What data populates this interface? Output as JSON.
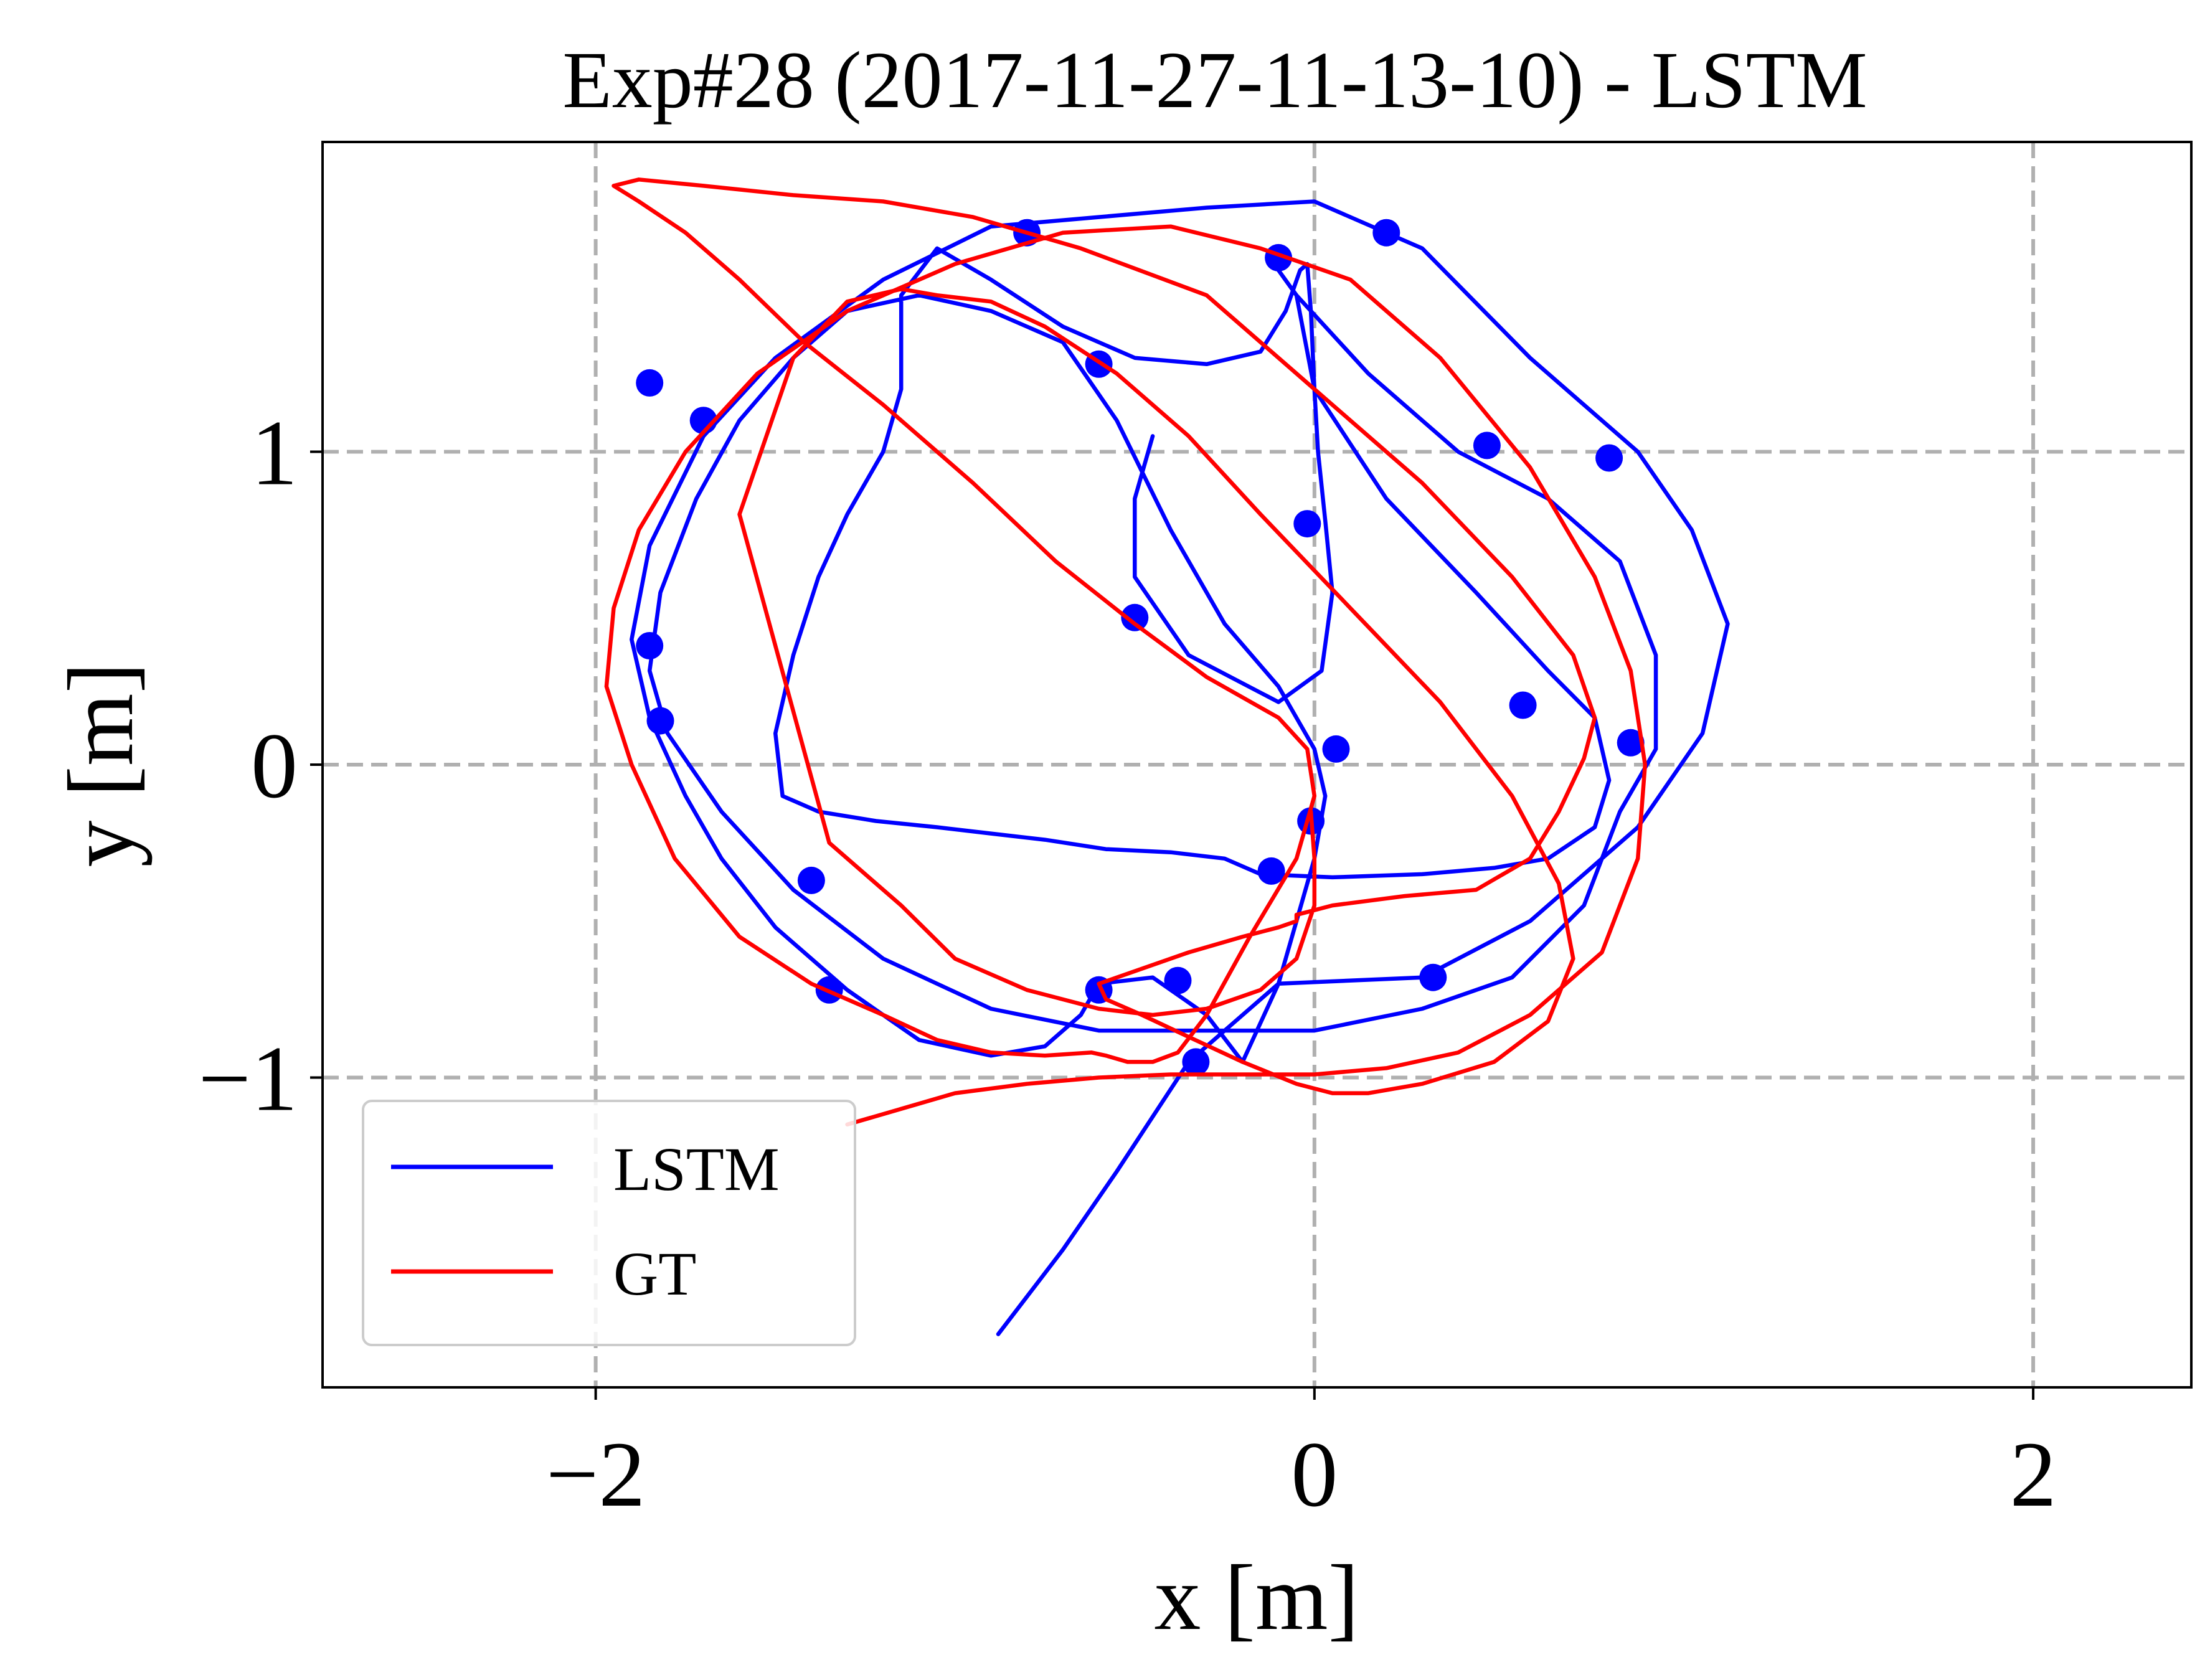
{
  "chart_data": {
    "type": "line",
    "title": "Exp#28 (2017-11-27-11-13-10) - LSTM",
    "xlabel": "x [m]",
    "ylabel": "y [m]",
    "xlim": [
      -2.76,
      2.44
    ],
    "ylim": [
      -1.99,
      1.99
    ],
    "xticks": [
      {
        "value": -2,
        "label": "−2"
      },
      {
        "value": 0,
        "label": "0"
      },
      {
        "value": 2,
        "label": "2"
      }
    ],
    "yticks": [
      {
        "value": -1,
        "label": "−1"
      },
      {
        "value": 0,
        "label": "0"
      },
      {
        "value": 1,
        "label": "1"
      }
    ],
    "grid": true,
    "grid_color": "#b0b0b0",
    "legend": {
      "position": "lower-left",
      "entries": [
        {
          "label": "LSTM",
          "color": "#0000ff"
        },
        {
          "label": "GT",
          "color": "#ff0000"
        }
      ]
    },
    "series": [
      {
        "name": "LSTM",
        "color": "#0000ff",
        "x": [
          -0.88,
          -0.7,
          -0.55,
          -0.35,
          -0.1,
          0.3,
          0.6,
          0.9,
          1.08,
          1.15,
          1.05,
          0.9,
          0.6,
          0.3,
          0.0,
          -0.3,
          -0.6,
          -0.9,
          -1.2,
          -1.5,
          -1.7,
          -1.85,
          -1.9,
          -1.85,
          -1.75,
          -1.65,
          -1.5,
          -1.3,
          -1.1,
          -0.9,
          -0.75,
          -0.65,
          -0.6,
          -0.45,
          -0.3,
          -0.2,
          -0.1,
          -0.05,
          0.0,
          0.03,
          0.0,
          -0.1,
          -0.25,
          -0.4,
          -0.55,
          -0.7,
          -0.9,
          -1.1,
          -1.3,
          -1.45,
          -1.6,
          -1.72,
          -1.82,
          -1.85,
          -1.8,
          -1.65,
          -1.45,
          -1.2,
          -0.9,
          -0.6,
          -0.3,
          0.0,
          0.3,
          0.55,
          0.75,
          0.85,
          0.95,
          0.95,
          0.85,
          0.65,
          0.4,
          0.15,
          -0.05,
          -0.1,
          -0.05,
          0.0,
          0.2,
          0.45,
          0.65,
          0.78,
          0.82,
          0.78,
          0.65,
          0.5,
          0.3,
          0.05,
          -0.15,
          -0.25,
          -0.4,
          -0.58,
          -0.75,
          -0.9,
          -1.05,
          -1.22,
          -1.38,
          -1.48,
          -1.5,
          -1.45,
          -1.38,
          -1.3,
          -1.2,
          -1.15,
          -1.15,
          -1.05,
          -0.9,
          -0.7,
          -0.5,
          -0.3,
          -0.15,
          -0.08,
          -0.04,
          -0.02,
          -0.01,
          0.0,
          0.01,
          0.03,
          0.05,
          0.02,
          -0.1,
          -0.35,
          -0.5,
          -0.5,
          -0.45
        ],
        "y": [
          -1.82,
          -1.55,
          -1.3,
          -0.95,
          -0.7,
          -0.68,
          -0.5,
          -0.2,
          0.1,
          0.45,
          0.75,
          1.0,
          1.3,
          1.65,
          1.8,
          1.78,
          1.75,
          1.72,
          1.55,
          1.3,
          1.05,
          0.7,
          0.4,
          0.15,
          -0.1,
          -0.3,
          -0.52,
          -0.72,
          -0.88,
          -0.93,
          -0.9,
          -0.8,
          -0.7,
          -0.68,
          -0.8,
          -0.95,
          -0.7,
          -0.5,
          -0.3,
          -0.1,
          0.05,
          0.25,
          0.45,
          0.75,
          1.1,
          1.35,
          1.45,
          1.5,
          1.45,
          1.3,
          1.1,
          0.85,
          0.55,
          0.3,
          0.1,
          -0.15,
          -0.4,
          -0.62,
          -0.78,
          -0.85,
          -0.85,
          -0.85,
          -0.78,
          -0.68,
          -0.45,
          -0.15,
          0.05,
          0.35,
          0.65,
          0.85,
          1.0,
          1.25,
          1.5,
          1.58,
          1.5,
          1.2,
          0.85,
          0.55,
          0.3,
          0.15,
          -0.05,
          -0.2,
          -0.3,
          -0.33,
          -0.35,
          -0.36,
          -0.35,
          -0.3,
          -0.28,
          -0.27,
          -0.24,
          -0.22,
          -0.2,
          -0.18,
          -0.15,
          -0.1,
          0.1,
          0.35,
          0.6,
          0.8,
          1.0,
          1.2,
          1.5,
          1.65,
          1.55,
          1.4,
          1.3,
          1.28,
          1.32,
          1.45,
          1.58,
          1.6,
          1.45,
          1.2,
          1.0,
          0.78,
          0.55,
          0.3,
          0.2,
          0.35,
          0.6,
          0.85,
          1.05
        ],
        "markers_x": [
          -0.8,
          0.2,
          -0.1,
          -0.6,
          -1.7,
          -1.85,
          -1.85,
          -1.82,
          -1.4,
          -1.35,
          -0.6,
          -0.38,
          -0.33,
          0.33,
          0.58,
          0.88,
          0.82,
          0.48,
          -0.02,
          -0.5,
          0.06,
          -0.01,
          -0.12
        ],
        "markers_y": [
          1.7,
          1.7,
          1.62,
          1.28,
          1.1,
          1.22,
          0.38,
          0.14,
          -0.37,
          -0.72,
          -0.72,
          -0.69,
          -0.95,
          -0.68,
          0.19,
          0.07,
          0.98,
          1.02,
          0.77,
          0.47,
          0.05,
          -0.18,
          -0.34
        ]
      },
      {
        "name": "GT",
        "color": "#ff0000",
        "x": [
          -1.3,
          -1.15,
          -1.0,
          -0.8,
          -0.6,
          -0.4,
          -0.2,
          0.0,
          0.2,
          0.4,
          0.6,
          0.8,
          0.9,
          0.92,
          0.88,
          0.78,
          0.6,
          0.35,
          0.1,
          -0.15,
          -0.4,
          -0.7,
          -1.0,
          -1.3,
          -1.55,
          -1.75,
          -1.88,
          -1.95,
          -1.97,
          -1.9,
          -1.78,
          -1.6,
          -1.4,
          -1.2,
          -1.05,
          -0.9,
          -0.75,
          -0.62,
          -0.58,
          -0.52,
          -0.45,
          -0.38,
          -0.3,
          -0.18,
          -0.05,
          0.0,
          -0.02,
          -0.1,
          -0.3,
          -0.5,
          -0.72,
          -0.95,
          -1.2,
          -1.42,
          -1.6,
          -1.75,
          -1.88,
          -1.95,
          -1.88,
          -1.7,
          -1.45,
          -1.2,
          -0.95,
          -0.65,
          -0.3,
          0.0,
          0.3,
          0.55,
          0.72,
          0.78,
          0.75,
          0.68,
          0.6,
          0.45,
          0.25,
          0.05,
          -0.05,
          -0.05,
          -0.1,
          -0.2,
          -0.35,
          -0.5,
          -0.6,
          -0.58,
          -0.48,
          -0.35,
          -0.2,
          -0.05,
          0.05,
          0.15,
          0.3,
          0.5,
          0.65,
          0.72,
          0.68,
          0.55,
          0.35,
          0.1,
          -0.15,
          -0.35,
          -0.55,
          -0.75,
          -0.9,
          -1.05,
          -1.15,
          -1.3,
          -1.45,
          -1.6,
          -1.35,
          -1.15,
          -1.0,
          -0.8,
          -0.6,
          -0.45,
          -0.3,
          -0.15,
          -0.05,
          0.0,
          0.0,
          -0.01
        ],
        "y": [
          -1.15,
          -1.1,
          -1.05,
          -1.02,
          -1.0,
          -0.99,
          -0.99,
          -0.99,
          -0.97,
          -0.92,
          -0.8,
          -0.6,
          -0.3,
          0.0,
          0.3,
          0.6,
          0.95,
          1.3,
          1.55,
          1.65,
          1.72,
          1.7,
          1.6,
          1.45,
          1.25,
          1.0,
          0.75,
          0.5,
          0.25,
          0.0,
          -0.3,
          -0.55,
          -0.7,
          -0.8,
          -0.88,
          -0.92,
          -0.93,
          -0.92,
          -0.93,
          -0.95,
          -0.95,
          -0.92,
          -0.8,
          -0.55,
          -0.3,
          -0.1,
          0.05,
          0.15,
          0.28,
          0.45,
          0.65,
          0.9,
          1.15,
          1.35,
          1.55,
          1.7,
          1.8,
          1.85,
          1.87,
          1.85,
          1.82,
          1.8,
          1.75,
          1.65,
          1.5,
          1.2,
          0.9,
          0.6,
          0.35,
          0.15,
          0.02,
          -0.15,
          -0.3,
          -0.4,
          -0.42,
          -0.45,
          -0.48,
          -0.5,
          -0.52,
          -0.55,
          -0.6,
          -0.66,
          -0.7,
          -0.75,
          -0.8,
          -0.87,
          -0.95,
          -1.02,
          -1.05,
          -1.05,
          -1.02,
          -0.95,
          -0.82,
          -0.62,
          -0.38,
          -0.1,
          0.2,
          0.5,
          0.8,
          1.05,
          1.25,
          1.4,
          1.48,
          1.5,
          1.52,
          1.48,
          1.3,
          0.8,
          -0.25,
          -0.45,
          -0.62,
          -0.72,
          -0.78,
          -0.8,
          -0.78,
          -0.72,
          -0.62,
          -0.45,
          -0.3,
          -0.15
        ]
      }
    ]
  }
}
